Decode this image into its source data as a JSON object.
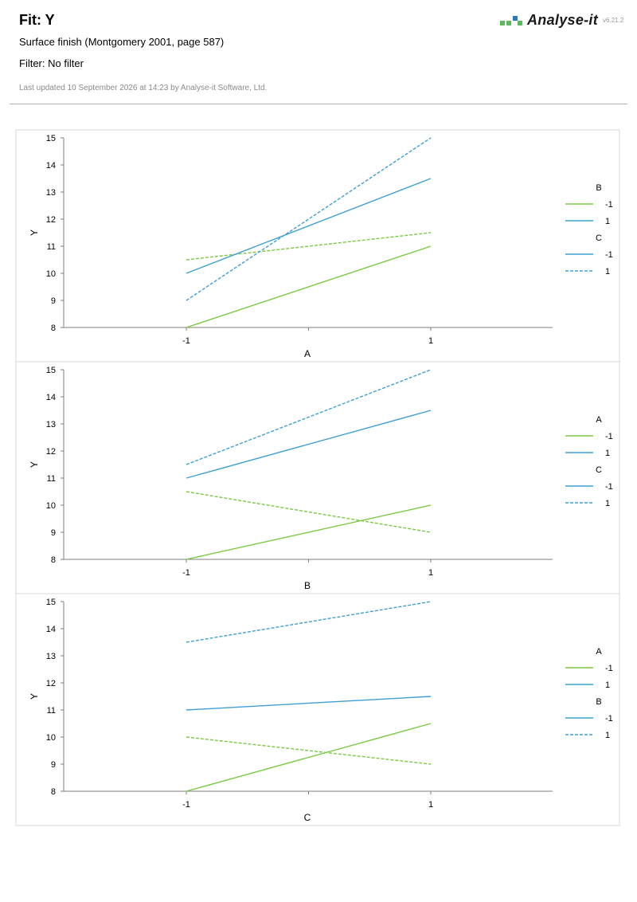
{
  "header": {
    "title": "Fit: Y",
    "subtitle": "Surface finish (Montgomery 2001, page 587)",
    "filter": "Filter: No filter",
    "updated": "Last updated 10 September 2026 at 14:23 by Analyse-it Software, Ltd.",
    "brand": "Analyse-it",
    "version": "v6.21.2",
    "logo_icon": "analyse-it-logo-icon"
  },
  "colors": {
    "green": "#7ac943",
    "blue": "#3f9fd3",
    "axis": "#7f7f7f",
    "frame": "#d9d9d9",
    "logo_green": "#5cb85c",
    "logo_blue": "#2b7bb9"
  },
  "chart_data": [
    {
      "type": "line",
      "xlabel": "A",
      "ylabel": "Y",
      "categories": [
        "-1",
        "1"
      ],
      "ylim": [
        8,
        15
      ],
      "yticks": [
        8,
        9,
        10,
        11,
        12,
        13,
        14,
        15
      ],
      "legend_placement": "right",
      "legend": [
        {
          "title": "B",
          "entries": [
            {
              "label": "-1",
              "color": "green",
              "dash": false
            },
            {
              "label": "1",
              "color": "blue",
              "dash": false
            }
          ]
        },
        {
          "title": "C",
          "entries": [
            {
              "label": "-1",
              "color": "blue",
              "dash": false
            },
            {
              "label": "1",
              "color": "blue",
              "dash": true
            }
          ]
        }
      ],
      "series": [
        {
          "values": [
            8,
            11
          ],
          "color": "green",
          "dash": false
        },
        {
          "values": [
            10.5,
            11.5
          ],
          "color": "green",
          "dash": true
        },
        {
          "values": [
            10,
            13.5
          ],
          "color": "blue",
          "dash": false
        },
        {
          "values": [
            9,
            15
          ],
          "color": "blue",
          "dash": true
        }
      ]
    },
    {
      "type": "line",
      "xlabel": "B",
      "ylabel": "Y",
      "categories": [
        "-1",
        "1"
      ],
      "ylim": [
        8,
        15
      ],
      "yticks": [
        8,
        9,
        10,
        11,
        12,
        13,
        14,
        15
      ],
      "legend_placement": "right",
      "legend": [
        {
          "title": "A",
          "entries": [
            {
              "label": "-1",
              "color": "green",
              "dash": false
            },
            {
              "label": "1",
              "color": "blue",
              "dash": false
            }
          ]
        },
        {
          "title": "C",
          "entries": [
            {
              "label": "-1",
              "color": "blue",
              "dash": false
            },
            {
              "label": "1",
              "color": "blue",
              "dash": true
            }
          ]
        }
      ],
      "series": [
        {
          "values": [
            8,
            10
          ],
          "color": "green",
          "dash": false
        },
        {
          "values": [
            10.5,
            9
          ],
          "color": "green",
          "dash": true
        },
        {
          "values": [
            11,
            13.5
          ],
          "color": "blue",
          "dash": false
        },
        {
          "values": [
            11.5,
            15
          ],
          "color": "blue",
          "dash": true
        }
      ]
    },
    {
      "type": "line",
      "xlabel": "C",
      "ylabel": "Y",
      "categories": [
        "-1",
        "1"
      ],
      "ylim": [
        8,
        15
      ],
      "yticks": [
        8,
        9,
        10,
        11,
        12,
        13,
        14,
        15
      ],
      "legend_placement": "right",
      "legend": [
        {
          "title": "A",
          "entries": [
            {
              "label": "-1",
              "color": "green",
              "dash": false
            },
            {
              "label": "1",
              "color": "blue",
              "dash": false
            }
          ]
        },
        {
          "title": "B",
          "entries": [
            {
              "label": "-1",
              "color": "blue",
              "dash": false
            },
            {
              "label": "1",
              "color": "blue",
              "dash": true
            }
          ]
        }
      ],
      "series": [
        {
          "values": [
            8,
            10.5
          ],
          "color": "green",
          "dash": false
        },
        {
          "values": [
            10,
            9
          ],
          "color": "green",
          "dash": true
        },
        {
          "values": [
            11,
            11.5
          ],
          "color": "blue",
          "dash": false
        },
        {
          "values": [
            13.5,
            15
          ],
          "color": "blue",
          "dash": true
        }
      ]
    }
  ]
}
